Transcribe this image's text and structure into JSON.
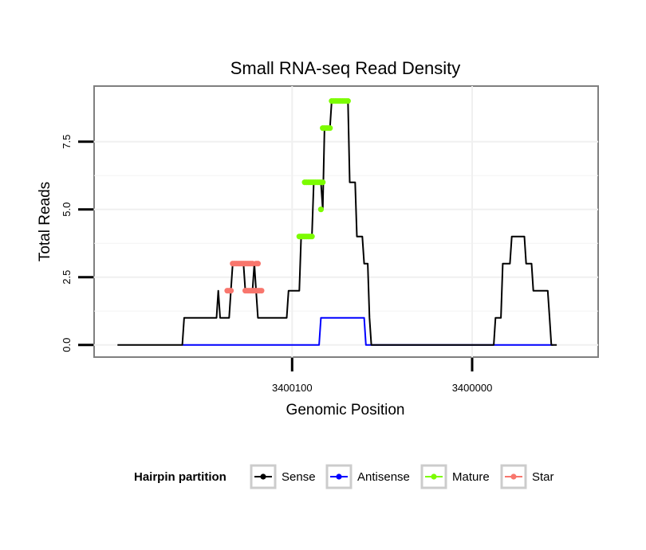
{
  "chart_data": {
    "type": "line",
    "title": "Small RNA-seq Read Density",
    "xlabel": "Genomic Position",
    "ylabel": "Total Reads",
    "xlim": [
      3400210,
      3399930
    ],
    "ylim": [
      -0.45,
      9.55
    ],
    "x_ticks": [
      {
        "value": 3400100,
        "label": "3400100"
      },
      {
        "value": 3400000,
        "label": "3400000"
      }
    ],
    "y_ticks": [
      {
        "value": 0,
        "label": "0.0"
      },
      {
        "value": 2.5,
        "label": "2.5"
      },
      {
        "value": 5,
        "label": "5.0"
      },
      {
        "value": 7.5,
        "label": "7.5"
      }
    ],
    "legend": {
      "title": "Hairpin partition",
      "position": "bottom",
      "entries": [
        {
          "name": "Sense",
          "color": "#000000"
        },
        {
          "name": "Antisense",
          "color": "#0000ff"
        },
        {
          "name": "Mature",
          "color": "#7cfc00"
        },
        {
          "name": "Star",
          "color": "#f8766d"
        }
      ]
    },
    "series": [
      {
        "name": "Sense",
        "color": "#000000",
        "style": "line",
        "points": [
          [
            3400197,
            0
          ],
          [
            3400161,
            0
          ],
          [
            3400160,
            1
          ],
          [
            3400142,
            1
          ],
          [
            3400141,
            2
          ],
          [
            3400140,
            1
          ],
          [
            3400135,
            1
          ],
          [
            3400134,
            2
          ],
          [
            3400133,
            3
          ],
          [
            3400127,
            3
          ],
          [
            3400126,
            2
          ],
          [
            3400122,
            2
          ],
          [
            3400121,
            3
          ],
          [
            3400120,
            2
          ],
          [
            3400119,
            1
          ],
          [
            3400103,
            1
          ],
          [
            3400102,
            2
          ],
          [
            3400096,
            2
          ],
          [
            3400095,
            4
          ],
          [
            3400089,
            4
          ],
          [
            3400088,
            6
          ],
          [
            3400084,
            6
          ],
          [
            3400083,
            5
          ],
          [
            3400082,
            8
          ],
          [
            3400079,
            8
          ],
          [
            3400078,
            9
          ],
          [
            3400069,
            9
          ],
          [
            3400068,
            6
          ],
          [
            3400065,
            6
          ],
          [
            3400064,
            4
          ],
          [
            3400061,
            4
          ],
          [
            3400060,
            3
          ],
          [
            3400058,
            3
          ],
          [
            3400057,
            1
          ],
          [
            3400056,
            0
          ],
          [
            3399988,
            0
          ],
          [
            3399987,
            1
          ],
          [
            3399984,
            1
          ],
          [
            3399983,
            3
          ],
          [
            3399979,
            3
          ],
          [
            3399978,
            4
          ],
          [
            3399971,
            4
          ],
          [
            3399970,
            3
          ],
          [
            3399967,
            3
          ],
          [
            3399966,
            2
          ],
          [
            3399958,
            2
          ],
          [
            3399957,
            1
          ],
          [
            3399956,
            0
          ],
          [
            3399953,
            0
          ]
        ]
      },
      {
        "name": "Antisense",
        "color": "#0000ff",
        "style": "line",
        "points": [
          [
            3400161,
            0
          ],
          [
            3400085,
            0
          ],
          [
            3400084,
            1
          ],
          [
            3400060,
            1
          ],
          [
            3400059,
            0
          ],
          [
            3399955,
            0
          ]
        ]
      },
      {
        "name": "Mature",
        "color": "#7cfc00",
        "style": "points",
        "segments": [
          {
            "y": 4,
            "x0": 3400096,
            "x1": 3400089
          },
          {
            "y": 6,
            "x0": 3400093,
            "x1": 3400083
          },
          {
            "y": 5,
            "x0": 3400084,
            "x1": 3400084
          },
          {
            "y": 8,
            "x0": 3400083,
            "x1": 3400079
          },
          {
            "y": 9,
            "x0": 3400078,
            "x1": 3400069
          }
        ]
      },
      {
        "name": "Star",
        "color": "#f8766d",
        "style": "points",
        "segments": [
          {
            "y": 2,
            "x0": 3400136,
            "x1": 3400134
          },
          {
            "y": 3,
            "x0": 3400133,
            "x1": 3400122
          },
          {
            "y": 2,
            "x0": 3400126,
            "x1": 3400117
          },
          {
            "y": 3,
            "x0": 3400120,
            "x1": 3400119
          }
        ]
      }
    ]
  }
}
